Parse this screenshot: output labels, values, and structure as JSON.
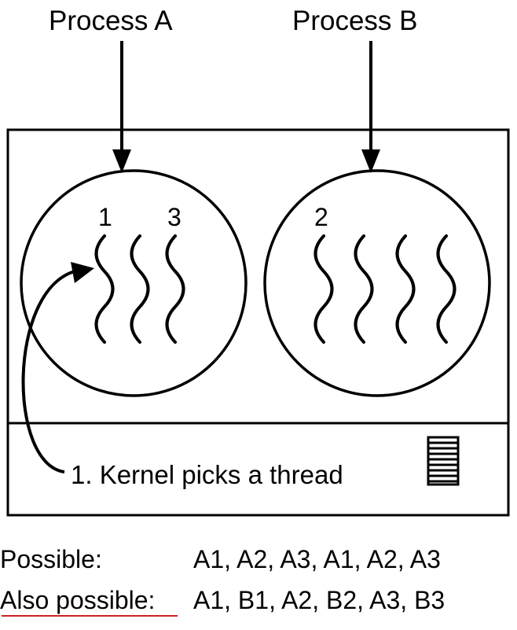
{
  "diagram": {
    "process_a_label": "Process A",
    "process_b_label": "Process B",
    "thread_labels": {
      "a_first": "1",
      "a_third": "3",
      "b_first": "2"
    },
    "kernel_caption": "1. Kernel picks a thread",
    "possible": {
      "label": "Possible:",
      "sequence": "A1, A2, A3, A1, A2, A3"
    },
    "also_possible": {
      "label": "Also possible:",
      "sequence": "A1, B1, A2, B2, A3, B3"
    },
    "icons": [
      "run-queue-icon",
      "thread-squiggle-icon",
      "down-arrow-icon"
    ],
    "colors": {
      "ink": "#000000",
      "underline": "#cc2222"
    }
  }
}
